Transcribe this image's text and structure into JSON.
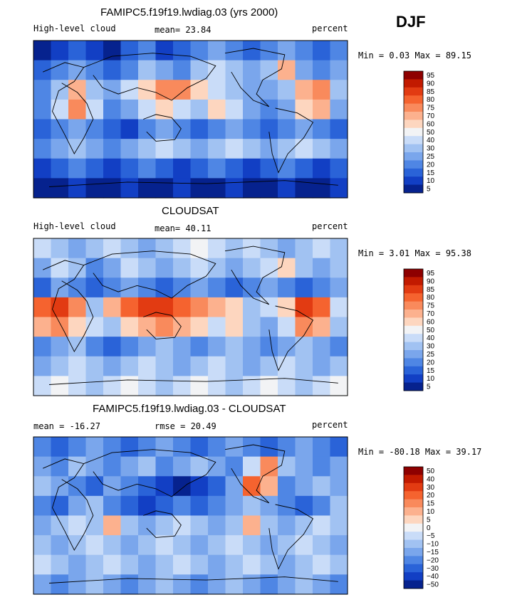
{
  "season": "DJF",
  "colors": {
    "coast": "#000000",
    "frame": "#000000"
  },
  "chart_data": [
    {
      "type": "heatmap",
      "title": "FAMIPC5.f19f19.lwdiag.03 (yrs 2000)",
      "left_label": "High-level cloud",
      "center_label": "mean=  23.84",
      "right_label": "percent",
      "range_label": "Min =   0.03 Max =  89.15",
      "min": 0.03,
      "max": 89.15,
      "mean": 23.84,
      "colorbar_levels": [
        "95",
        "90",
        "85",
        "80",
        "75",
        "70",
        "60",
        "50",
        "40",
        "30",
        "25",
        "20",
        "15",
        "10",
        "5"
      ],
      "colorbar_colors": [
        "#8e0000",
        "#c21a00",
        "#e23b12",
        "#f5632f",
        "#f98a5c",
        "#fcb18e",
        "#fdd6bf",
        "#f2f3f5",
        "#c9dcf8",
        "#a1c2f2",
        "#7aa6ec",
        "#4f86e4",
        "#2a63d8",
        "#123fc4",
        "#06228e"
      ],
      "cells": [
        [
          "#06228e",
          "#123fc4",
          "#2a63d8",
          "#123fc4",
          "#06228e",
          "#2a63d8",
          "#4f86e4",
          "#123fc4",
          "#2a63d8",
          "#4f86e4",
          "#7aa6ec",
          "#4f86e4",
          "#2a63d8",
          "#4f86e4",
          "#7aa6ec",
          "#4f86e4",
          "#2a63d8",
          "#4f86e4"
        ],
        [
          "#2a63d8",
          "#4f86e4",
          "#7aa6ec",
          "#4f86e4",
          "#2a63d8",
          "#4f86e4",
          "#a1c2f2",
          "#7aa6ec",
          "#4f86e4",
          "#a1c2f2",
          "#c9dcf8",
          "#a1c2f2",
          "#7aa6ec",
          "#a1c2f2",
          "#fcb18e",
          "#7aa6ec",
          "#4f86e4",
          "#7aa6ec"
        ],
        [
          "#4f86e4",
          "#a1c2f2",
          "#fcb18e",
          "#a1c2f2",
          "#7aa6ec",
          "#c9dcf8",
          "#fdd6bf",
          "#f98a5c",
          "#f98a5c",
          "#fdd6bf",
          "#c9dcf8",
          "#a1c2f2",
          "#7aa6ec",
          "#7aa6ec",
          "#a1c2f2",
          "#fcb18e",
          "#f98a5c",
          "#a1c2f2"
        ],
        [
          "#4f86e4",
          "#c9dcf8",
          "#f98a5c",
          "#c9dcf8",
          "#4f86e4",
          "#7aa6ec",
          "#c9dcf8",
          "#fdd6bf",
          "#c9dcf8",
          "#a1c2f2",
          "#fdd6bf",
          "#c9dcf8",
          "#7aa6ec",
          "#4f86e4",
          "#7aa6ec",
          "#fdd6bf",
          "#fcb18e",
          "#7aa6ec"
        ],
        [
          "#2a63d8",
          "#4f86e4",
          "#7aa6ec",
          "#4f86e4",
          "#2a63d8",
          "#123fc4",
          "#4f86e4",
          "#7aa6ec",
          "#4f86e4",
          "#2a63d8",
          "#4f86e4",
          "#7aa6ec",
          "#4f86e4",
          "#2a63d8",
          "#4f86e4",
          "#7aa6ec",
          "#4f86e4",
          "#2a63d8"
        ],
        [
          "#4f86e4",
          "#7aa6ec",
          "#a1c2f2",
          "#7aa6ec",
          "#4f86e4",
          "#7aa6ec",
          "#a1c2f2",
          "#c9dcf8",
          "#a1c2f2",
          "#7aa6ec",
          "#a1c2f2",
          "#c9dcf8",
          "#a1c2f2",
          "#7aa6ec",
          "#a1c2f2",
          "#c9dcf8",
          "#a1c2f2",
          "#7aa6ec"
        ],
        [
          "#123fc4",
          "#2a63d8",
          "#4f86e4",
          "#2a63d8",
          "#123fc4",
          "#2a63d8",
          "#4f86e4",
          "#2a63d8",
          "#123fc4",
          "#2a63d8",
          "#4f86e4",
          "#2a63d8",
          "#123fc4",
          "#2a63d8",
          "#4f86e4",
          "#2a63d8",
          "#123fc4",
          "#2a63d8"
        ],
        [
          "#06228e",
          "#06228e",
          "#123fc4",
          "#06228e",
          "#06228e",
          "#123fc4",
          "#06228e",
          "#06228e",
          "#123fc4",
          "#06228e",
          "#06228e",
          "#123fc4",
          "#06228e",
          "#06228e",
          "#123fc4",
          "#06228e",
          "#06228e",
          "#123fc4"
        ]
      ]
    },
    {
      "type": "heatmap",
      "title": "CLOUDSAT",
      "left_label": "High-level cloud",
      "center_label": "mean=  40.11",
      "right_label": "percent",
      "range_label": "Min =   3.01 Max =  95.38",
      "min": 3.01,
      "max": 95.38,
      "mean": 40.11,
      "colorbar_levels": [
        "95",
        "90",
        "85",
        "80",
        "75",
        "70",
        "60",
        "50",
        "40",
        "30",
        "25",
        "20",
        "15",
        "10",
        "5"
      ],
      "colorbar_colors": [
        "#8e0000",
        "#c21a00",
        "#e23b12",
        "#f5632f",
        "#f98a5c",
        "#fcb18e",
        "#fdd6bf",
        "#f2f3f5",
        "#c9dcf8",
        "#a1c2f2",
        "#7aa6ec",
        "#4f86e4",
        "#2a63d8",
        "#123fc4",
        "#06228e"
      ],
      "cells": [
        [
          "#c9dcf8",
          "#a1c2f2",
          "#7aa6ec",
          "#a1c2f2",
          "#c9dcf8",
          "#a1c2f2",
          "#7aa6ec",
          "#a1c2f2",
          "#c9dcf8",
          "#f2f3f5",
          "#c9dcf8",
          "#a1c2f2",
          "#c9dcf8",
          "#a1c2f2",
          "#7aa6ec",
          "#a1c2f2",
          "#c9dcf8",
          "#a1c2f2"
        ],
        [
          "#7aa6ec",
          "#c9dcf8",
          "#a1c2f2",
          "#4f86e4",
          "#7aa6ec",
          "#c9dcf8",
          "#a1c2f2",
          "#7aa6ec",
          "#a1c2f2",
          "#c9dcf8",
          "#a1c2f2",
          "#7aa6ec",
          "#a1c2f2",
          "#c9dcf8",
          "#fdd6bf",
          "#a1c2f2",
          "#7aa6ec",
          "#a1c2f2"
        ],
        [
          "#2a63d8",
          "#7aa6ec",
          "#4f86e4",
          "#2a63d8",
          "#4f86e4",
          "#7aa6ec",
          "#4f86e4",
          "#2a63d8",
          "#4f86e4",
          "#7aa6ec",
          "#4f86e4",
          "#2a63d8",
          "#4f86e4",
          "#7aa6ec",
          "#4f86e4",
          "#2a63d8",
          "#4f86e4",
          "#7aa6ec"
        ],
        [
          "#f5632f",
          "#e23b12",
          "#f98a5c",
          "#a1c2f2",
          "#fcb18e",
          "#f5632f",
          "#e23b12",
          "#e23b12",
          "#f5632f",
          "#f98a5c",
          "#fcb18e",
          "#fdd6bf",
          "#a1c2f2",
          "#c9dcf8",
          "#fdd6bf",
          "#e23b12",
          "#f5632f",
          "#c9dcf8"
        ],
        [
          "#fcb18e",
          "#f98a5c",
          "#fdd6bf",
          "#c9dcf8",
          "#a1c2f2",
          "#fdd6bf",
          "#fcb18e",
          "#f98a5c",
          "#fcb18e",
          "#fdd6bf",
          "#c9dcf8",
          "#fdd6bf",
          "#a1c2f2",
          "#7aa6ec",
          "#c9dcf8",
          "#f98a5c",
          "#fcb18e",
          "#a1c2f2"
        ],
        [
          "#4f86e4",
          "#7aa6ec",
          "#a1c2f2",
          "#4f86e4",
          "#2a63d8",
          "#4f86e4",
          "#7aa6ec",
          "#a1c2f2",
          "#7aa6ec",
          "#4f86e4",
          "#7aa6ec",
          "#a1c2f2",
          "#7aa6ec",
          "#4f86e4",
          "#7aa6ec",
          "#a1c2f2",
          "#7aa6ec",
          "#4f86e4"
        ],
        [
          "#7aa6ec",
          "#a1c2f2",
          "#c9dcf8",
          "#a1c2f2",
          "#7aa6ec",
          "#a1c2f2",
          "#c9dcf8",
          "#a1c2f2",
          "#7aa6ec",
          "#a1c2f2",
          "#c9dcf8",
          "#a1c2f2",
          "#7aa6ec",
          "#a1c2f2",
          "#c9dcf8",
          "#a1c2f2",
          "#7aa6ec",
          "#a1c2f2"
        ],
        [
          "#c9dcf8",
          "#f2f3f5",
          "#c9dcf8",
          "#a1c2f2",
          "#c9dcf8",
          "#f2f3f5",
          "#c9dcf8",
          "#a1c2f2",
          "#c9dcf8",
          "#f2f3f5",
          "#c9dcf8",
          "#a1c2f2",
          "#c9dcf8",
          "#f2f3f5",
          "#c9dcf8",
          "#a1c2f2",
          "#c9dcf8",
          "#f2f3f5"
        ]
      ]
    },
    {
      "type": "heatmap",
      "title": "FAMIPC5.f19f19.lwdiag.03 - CLOUDSAT",
      "left_label": "mean = -16.27",
      "center_label": "rmse =  20.49",
      "right_label": "percent",
      "range_label": "Min = -80.18 Max =  39.17",
      "min": -80.18,
      "max": 39.17,
      "mean": -16.27,
      "rmse": 20.49,
      "colorbar_levels": [
        "50",
        "40",
        "30",
        "20",
        "15",
        "10",
        "5",
        "0",
        "−5",
        "−10",
        "−15",
        "−20",
        "−30",
        "−40",
        "−50"
      ],
      "colorbar_colors": [
        "#8e0000",
        "#c21a00",
        "#e23b12",
        "#f5632f",
        "#f98a5c",
        "#fcb18e",
        "#fdd6bf",
        "#f2f3f5",
        "#c9dcf8",
        "#a1c2f2",
        "#7aa6ec",
        "#4f86e4",
        "#2a63d8",
        "#123fc4",
        "#06228e"
      ],
      "cells": [
        [
          "#4f86e4",
          "#2a63d8",
          "#4f86e4",
          "#7aa6ec",
          "#4f86e4",
          "#2a63d8",
          "#4f86e4",
          "#7aa6ec",
          "#4f86e4",
          "#2a63d8",
          "#4f86e4",
          "#7aa6ec",
          "#4f86e4",
          "#2a63d8",
          "#4f86e4",
          "#7aa6ec",
          "#4f86e4",
          "#2a63d8"
        ],
        [
          "#7aa6ec",
          "#4f86e4",
          "#a1c2f2",
          "#7aa6ec",
          "#4f86e4",
          "#7aa6ec",
          "#a1c2f2",
          "#4f86e4",
          "#7aa6ec",
          "#a1c2f2",
          "#7aa6ec",
          "#4f86e4",
          "#c9dcf8",
          "#f98a5c",
          "#a1c2f2",
          "#7aa6ec",
          "#4f86e4",
          "#7aa6ec"
        ],
        [
          "#a1c2f2",
          "#7aa6ec",
          "#4f86e4",
          "#2a63d8",
          "#7aa6ec",
          "#4f86e4",
          "#2a63d8",
          "#123fc4",
          "#06228e",
          "#123fc4",
          "#2a63d8",
          "#7aa6ec",
          "#f5632f",
          "#fcb18e",
          "#4f86e4",
          "#7aa6ec",
          "#a1c2f2",
          "#7aa6ec"
        ],
        [
          "#4f86e4",
          "#2a63d8",
          "#7aa6ec",
          "#a1c2f2",
          "#4f86e4",
          "#2a63d8",
          "#123fc4",
          "#2a63d8",
          "#4f86e4",
          "#2a63d8",
          "#4f86e4",
          "#7aa6ec",
          "#a1c2f2",
          "#7aa6ec",
          "#4f86e4",
          "#2a63d8",
          "#4f86e4",
          "#a1c2f2"
        ],
        [
          "#7aa6ec",
          "#a1c2f2",
          "#c9dcf8",
          "#a1c2f2",
          "#fcb18e",
          "#a1c2f2",
          "#7aa6ec",
          "#a1c2f2",
          "#c9dcf8",
          "#a1c2f2",
          "#7aa6ec",
          "#a1c2f2",
          "#fcb18e",
          "#a1c2f2",
          "#7aa6ec",
          "#a1c2f2",
          "#c9dcf8",
          "#a1c2f2"
        ],
        [
          "#a1c2f2",
          "#7aa6ec",
          "#a1c2f2",
          "#c9dcf8",
          "#a1c2f2",
          "#7aa6ec",
          "#a1c2f2",
          "#c9dcf8",
          "#a1c2f2",
          "#7aa6ec",
          "#a1c2f2",
          "#c9dcf8",
          "#a1c2f2",
          "#7aa6ec",
          "#a1c2f2",
          "#c9dcf8",
          "#a1c2f2",
          "#7aa6ec"
        ],
        [
          "#c9dcf8",
          "#a1c2f2",
          "#7aa6ec",
          "#a1c2f2",
          "#c9dcf8",
          "#a1c2f2",
          "#7aa6ec",
          "#a1c2f2",
          "#c9dcf8",
          "#a1c2f2",
          "#7aa6ec",
          "#a1c2f2",
          "#c9dcf8",
          "#a1c2f2",
          "#7aa6ec",
          "#a1c2f2",
          "#c9dcf8",
          "#a1c2f2"
        ],
        [
          "#7aa6ec",
          "#4f86e4",
          "#7aa6ec",
          "#a1c2f2",
          "#7aa6ec",
          "#4f86e4",
          "#7aa6ec",
          "#a1c2f2",
          "#7aa6ec",
          "#4f86e4",
          "#7aa6ec",
          "#a1c2f2",
          "#7aa6ec",
          "#4f86e4",
          "#7aa6ec",
          "#a1c2f2",
          "#7aa6ec",
          "#4f86e4"
        ]
      ]
    }
  ]
}
